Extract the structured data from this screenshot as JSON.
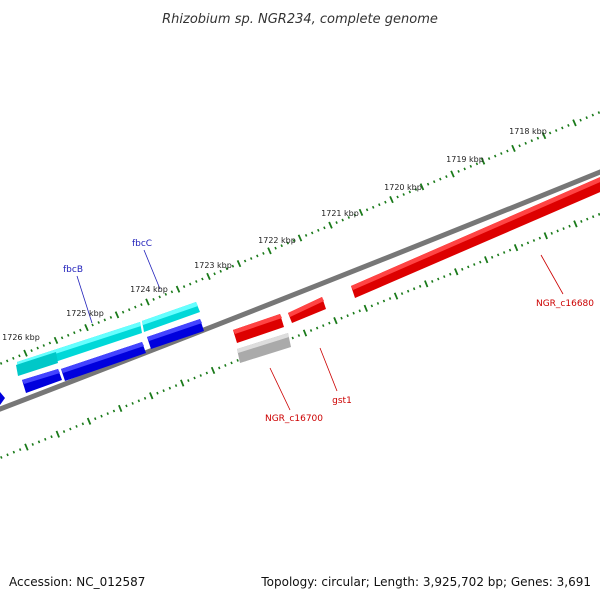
{
  "title": "Rhizobium sp. NGR234, complete genome",
  "footer": {
    "accession": "Accession: NC_012587",
    "summary": "Topology: circular; Length: 3,925,702 bp; Genes: 3,691"
  },
  "scale_labels": [
    "1718 kbp",
    "1719 kbp",
    "1720 kbp",
    "1721 kbp",
    "1722 kbp",
    "1723 kbp",
    "1724 kbp",
    "1725 kbp",
    "1726 kbp"
  ],
  "gene_labels": {
    "fbcB": "fbcB",
    "fbcC": "fbcC",
    "gst1": "gst1",
    "ngr_c16680": "NGR_c16680",
    "ngr_c16700": "NGR_c16700"
  },
  "colors": {
    "backbone": "#777777",
    "forward_gene": "#0000ee",
    "forward_cds": "#00e5e5",
    "reverse_gene": "#ee0000",
    "pseudo": "#bbbbbb",
    "tick": "#1a7a1a"
  }
}
